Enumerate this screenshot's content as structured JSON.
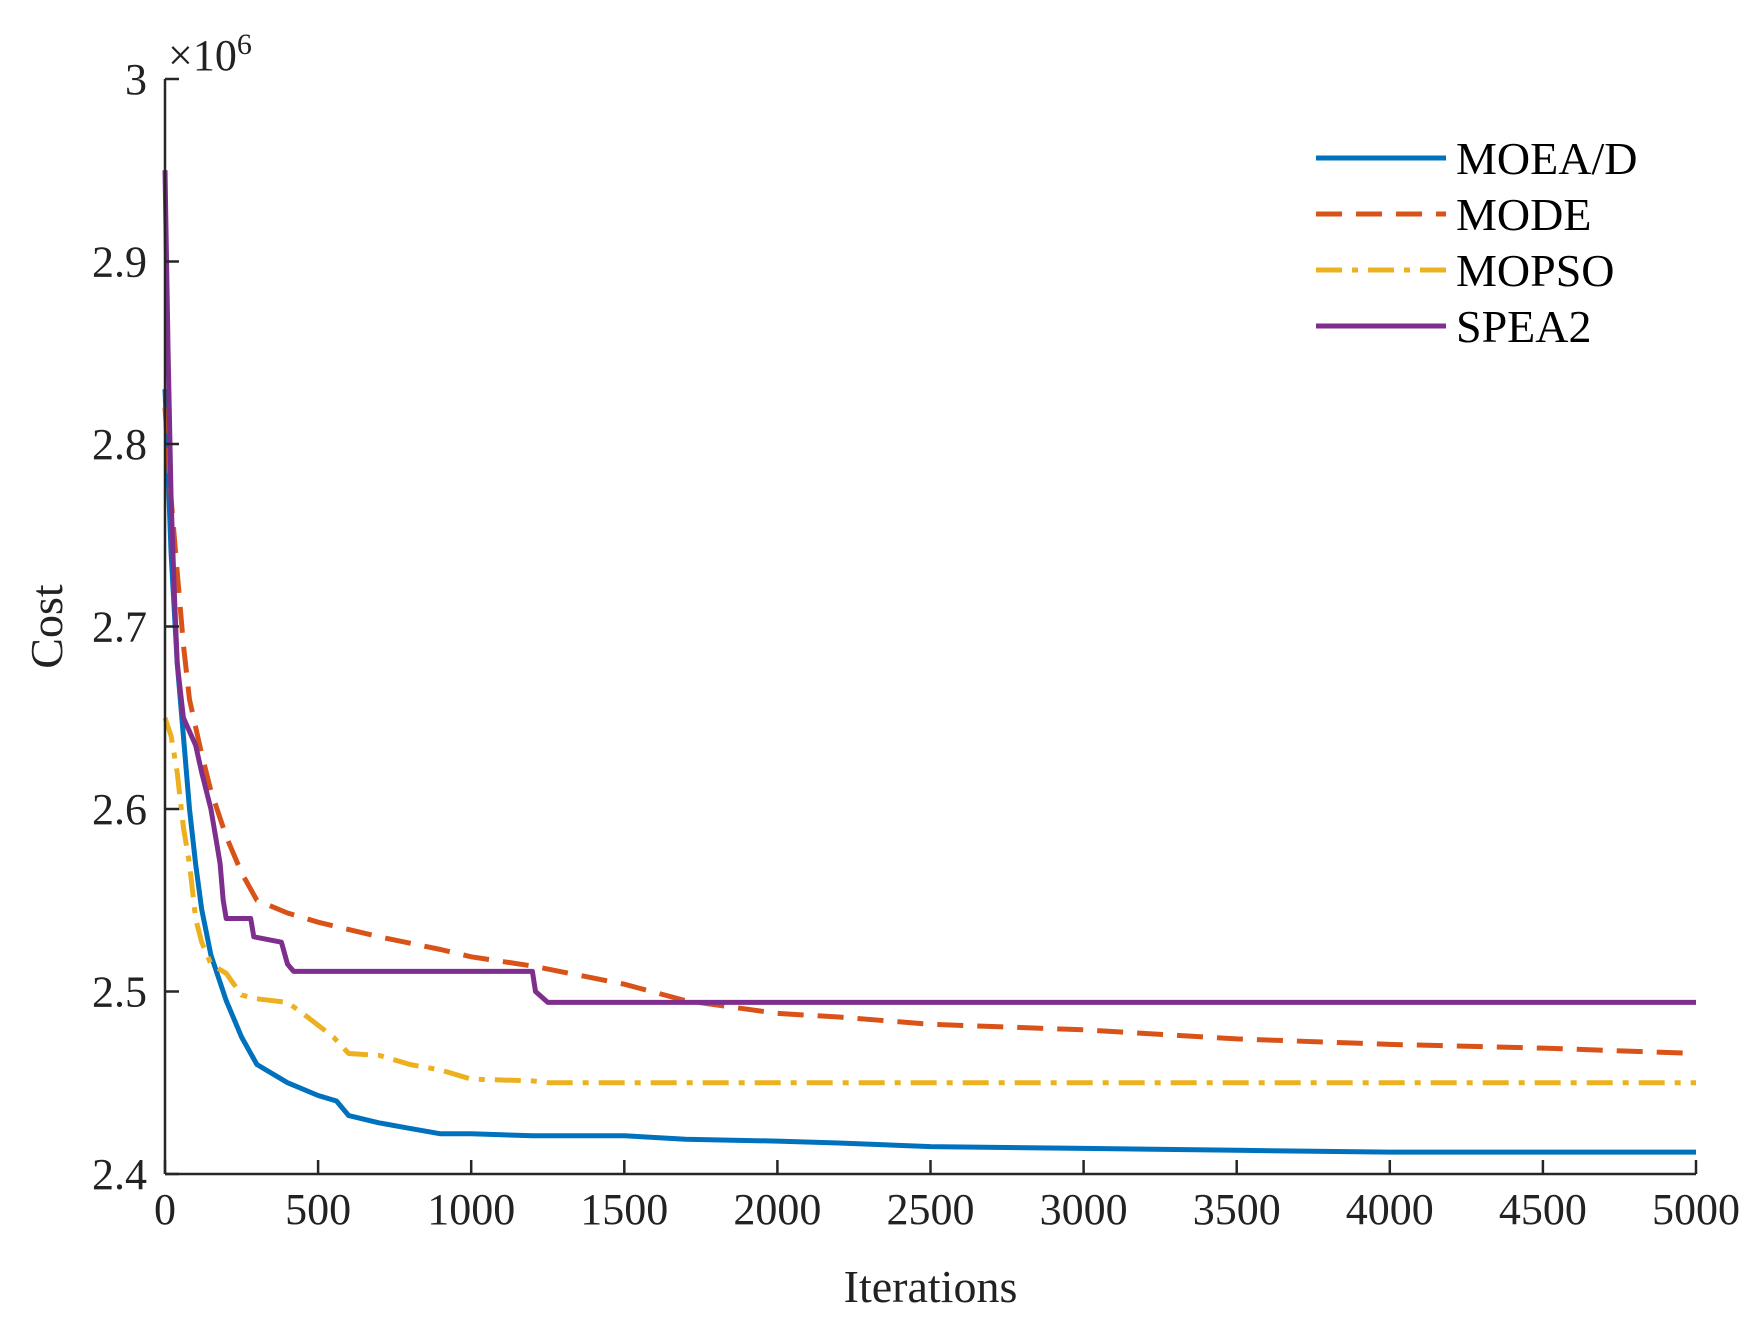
{
  "chart_data": {
    "type": "line",
    "title": "",
    "xlabel": "Iterations",
    "ylabel": "Cost",
    "y_multiplier_label": {
      "base": "×10",
      "exponent": "6"
    },
    "xlim": [
      0,
      5000
    ],
    "ylim": [
      2.4,
      3.0
    ],
    "xticks": [
      "0",
      "500",
      "1000",
      "1500",
      "2000",
      "2500",
      "3000",
      "3500",
      "4000",
      "4500",
      "5000"
    ],
    "yticks": [
      "2.4",
      "2.5",
      "2.6",
      "2.7",
      "2.8",
      "2.9",
      "3"
    ],
    "grid": false,
    "legend_position": "top-right",
    "series": [
      {
        "name": "MOEA/D",
        "color": "#0072BD",
        "dash": "solid",
        "points": [
          [
            0,
            2.83
          ],
          [
            20,
            2.74
          ],
          [
            40,
            2.68
          ],
          [
            60,
            2.64
          ],
          [
            80,
            2.6
          ],
          [
            100,
            2.57
          ],
          [
            120,
            2.545
          ],
          [
            150,
            2.52
          ],
          [
            200,
            2.495
          ],
          [
            250,
            2.475
          ],
          [
            300,
            2.46
          ],
          [
            400,
            2.45
          ],
          [
            500,
            2.443
          ],
          [
            560,
            2.44
          ],
          [
            600,
            2.432
          ],
          [
            700,
            2.428
          ],
          [
            800,
            2.425
          ],
          [
            900,
            2.422
          ],
          [
            1000,
            2.422
          ],
          [
            1200,
            2.421
          ],
          [
            1500,
            2.421
          ],
          [
            1700,
            2.419
          ],
          [
            2000,
            2.418
          ],
          [
            2200,
            2.417
          ],
          [
            2500,
            2.415
          ],
          [
            3000,
            2.414
          ],
          [
            3500,
            2.413
          ],
          [
            4000,
            2.412
          ],
          [
            4500,
            2.412
          ],
          [
            5000,
            2.412
          ]
        ]
      },
      {
        "name": "MODE",
        "color": "#D95319",
        "dash": "dashed",
        "points": [
          [
            0,
            2.82
          ],
          [
            20,
            2.77
          ],
          [
            40,
            2.73
          ],
          [
            60,
            2.69
          ],
          [
            80,
            2.66
          ],
          [
            100,
            2.645
          ],
          [
            120,
            2.63
          ],
          [
            150,
            2.61
          ],
          [
            200,
            2.585
          ],
          [
            250,
            2.565
          ],
          [
            300,
            2.55
          ],
          [
            400,
            2.543
          ],
          [
            500,
            2.538
          ],
          [
            700,
            2.53
          ],
          [
            900,
            2.523
          ],
          [
            1000,
            2.519
          ],
          [
            1200,
            2.514
          ],
          [
            1500,
            2.504
          ],
          [
            1700,
            2.495
          ],
          [
            2000,
            2.488
          ],
          [
            2200,
            2.486
          ],
          [
            2500,
            2.482
          ],
          [
            3000,
            2.479
          ],
          [
            3500,
            2.474
          ],
          [
            4000,
            2.471
          ],
          [
            4500,
            2.469
          ],
          [
            5000,
            2.466
          ]
        ]
      },
      {
        "name": "MOPSO",
        "color": "#EDB120",
        "dash": "dashdot",
        "points": [
          [
            0,
            2.65
          ],
          [
            20,
            2.64
          ],
          [
            40,
            2.62
          ],
          [
            60,
            2.59
          ],
          [
            80,
            2.57
          ],
          [
            100,
            2.54
          ],
          [
            120,
            2.527
          ],
          [
            150,
            2.515
          ],
          [
            200,
            2.51
          ],
          [
            250,
            2.498
          ],
          [
            300,
            2.496
          ],
          [
            400,
            2.494
          ],
          [
            450,
            2.488
          ],
          [
            550,
            2.475
          ],
          [
            600,
            2.466
          ],
          [
            700,
            2.465
          ],
          [
            800,
            2.46
          ],
          [
            900,
            2.457
          ],
          [
            1000,
            2.452
          ],
          [
            1200,
            2.451
          ],
          [
            1250,
            2.45
          ],
          [
            1500,
            2.45
          ],
          [
            2000,
            2.45
          ],
          [
            3000,
            2.45
          ],
          [
            4000,
            2.45
          ],
          [
            5000,
            2.45
          ]
        ]
      },
      {
        "name": "SPEA2",
        "color": "#7E2F8E",
        "dash": "solid",
        "points": [
          [
            0,
            2.95
          ],
          [
            10,
            2.85
          ],
          [
            20,
            2.77
          ],
          [
            30,
            2.72
          ],
          [
            40,
            2.68
          ],
          [
            60,
            2.65
          ],
          [
            100,
            2.635
          ],
          [
            120,
            2.62
          ],
          [
            150,
            2.6
          ],
          [
            170,
            2.58
          ],
          [
            180,
            2.57
          ],
          [
            190,
            2.55
          ],
          [
            200,
            2.54
          ],
          [
            280,
            2.54
          ],
          [
            290,
            2.53
          ],
          [
            380,
            2.527
          ],
          [
            400,
            2.515
          ],
          [
            420,
            2.511
          ],
          [
            1200,
            2.511
          ],
          [
            1210,
            2.5
          ],
          [
            1250,
            2.494
          ],
          [
            1500,
            2.494
          ],
          [
            2000,
            2.494
          ],
          [
            3000,
            2.494
          ],
          [
            4000,
            2.494
          ],
          [
            5000,
            2.494
          ]
        ]
      }
    ]
  }
}
